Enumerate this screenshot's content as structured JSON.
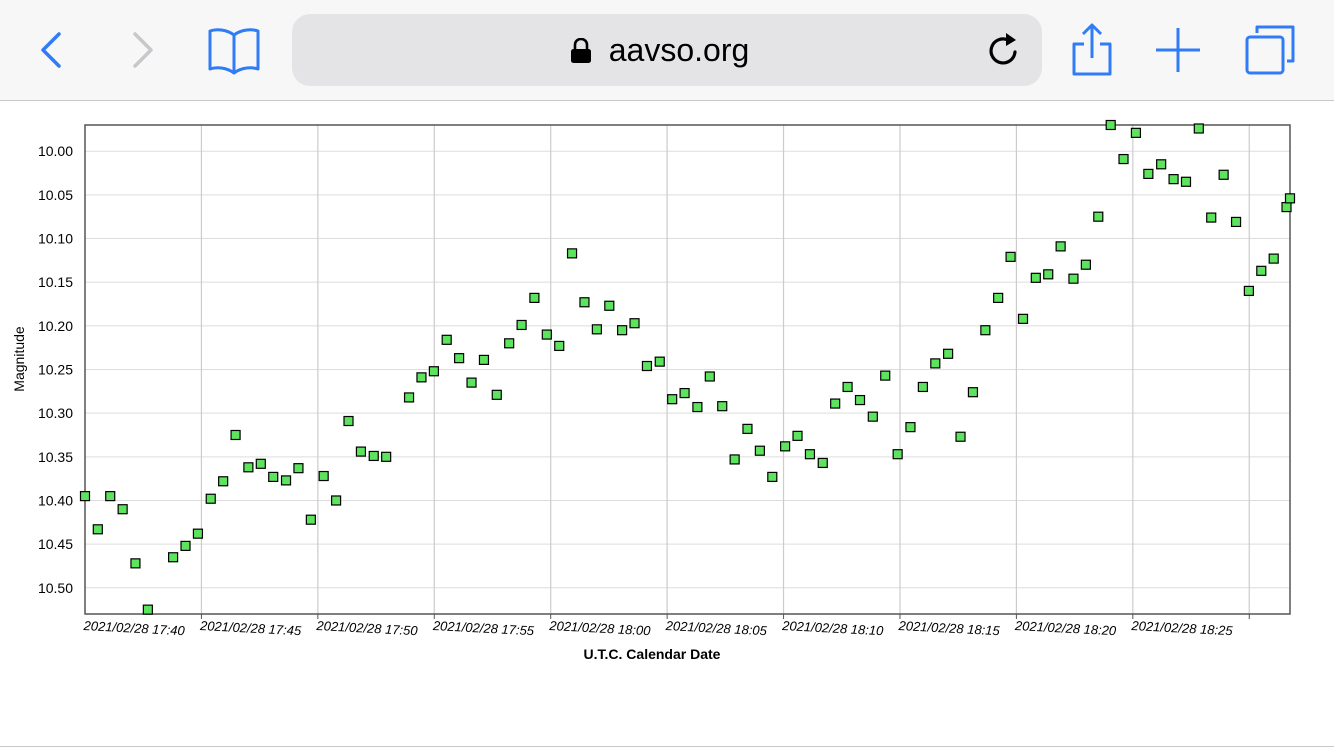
{
  "browser": {
    "url": "aavso.org",
    "icons": [
      "back-icon",
      "forward-icon",
      "bookmarks-icon",
      "lock-icon",
      "reload-icon",
      "share-icon",
      "new-tab-icon",
      "tabs-icon"
    ],
    "accent_color": "#2f7cf6",
    "disabled_color": "#c7c7cc"
  },
  "chart_data": {
    "type": "scatter",
    "title": "",
    "xlabel": "U.T.C. Calendar Date",
    "ylabel": "Magnitude",
    "y_inverted": true,
    "ylim": [
      10.53,
      9.97
    ],
    "xlim": [
      "2021/02/28 17:35:00",
      "2021/02/28 18:26:45"
    ],
    "grid": true,
    "marker": {
      "shape": "square",
      "fill": "#5ee35e",
      "stroke": "#000000"
    },
    "y_ticks": [
      "10.00",
      "10.05",
      "10.10",
      "10.15",
      "10.20",
      "10.25",
      "10.30",
      "10.35",
      "10.40",
      "10.45",
      "10.50"
    ],
    "x_ticks": [
      "2021/02/28 17:40",
      "2021/02/28 17:45",
      "2021/02/28 17:50",
      "2021/02/28 17:55",
      "2021/02/28 18:00",
      "2021/02/28 18:05",
      "2021/02/28 18:10",
      "2021/02/28 18:15",
      "2021/02/28 18:20",
      "2021/02/28 18:25"
    ],
    "points": [
      [
        "2021/02/28 17:35:00",
        10.395
      ],
      [
        "2021/02/28 17:35:33",
        10.433
      ],
      [
        "2021/02/28 17:36:05",
        10.395
      ],
      [
        "2021/02/28 17:36:37",
        10.41
      ],
      [
        "2021/02/28 17:37:10",
        10.472
      ],
      [
        "2021/02/28 17:37:42",
        10.525
      ],
      [
        "2021/02/28 17:38:47",
        10.465
      ],
      [
        "2021/02/28 17:39:19",
        10.452
      ],
      [
        "2021/02/28 17:39:51",
        10.438
      ],
      [
        "2021/02/28 17:40:24",
        10.398
      ],
      [
        "2021/02/28 17:40:56",
        10.378
      ],
      [
        "2021/02/28 17:41:28",
        10.325
      ],
      [
        "2021/02/28 17:42:01",
        10.362
      ],
      [
        "2021/02/28 17:42:33",
        10.358
      ],
      [
        "2021/02/28 17:43:05",
        10.373
      ],
      [
        "2021/02/28 17:43:38",
        10.377
      ],
      [
        "2021/02/28 17:44:10",
        10.363
      ],
      [
        "2021/02/28 17:44:42",
        10.422
      ],
      [
        "2021/02/28 17:45:15",
        10.372
      ],
      [
        "2021/02/28 17:45:47",
        10.4
      ],
      [
        "2021/02/28 17:46:19",
        10.309
      ],
      [
        "2021/02/28 17:46:51",
        10.344
      ],
      [
        "2021/02/28 17:47:24",
        10.349
      ],
      [
        "2021/02/28 17:47:56",
        10.35
      ],
      [
        "2021/02/28 17:48:55",
        10.282
      ],
      [
        "2021/02/28 17:49:27",
        10.259
      ],
      [
        "2021/02/28 17:49:59",
        10.252
      ],
      [
        "2021/02/28 17:50:32",
        10.216
      ],
      [
        "2021/02/28 17:51:04",
        10.237
      ],
      [
        "2021/02/28 17:51:36",
        10.265
      ],
      [
        "2021/02/28 17:52:08",
        10.239
      ],
      [
        "2021/02/28 17:52:41",
        10.279
      ],
      [
        "2021/02/28 17:53:13",
        10.22
      ],
      [
        "2021/02/28 17:53:45",
        10.199
      ],
      [
        "2021/02/28 17:54:18",
        10.168
      ],
      [
        "2021/02/28 17:54:50",
        10.21
      ],
      [
        "2021/02/28 17:55:22",
        10.223
      ],
      [
        "2021/02/28 17:55:55",
        10.117
      ],
      [
        "2021/02/28 17:56:27",
        10.173
      ],
      [
        "2021/02/28 17:56:59",
        10.204
      ],
      [
        "2021/02/28 17:57:31",
        10.177
      ],
      [
        "2021/02/28 17:58:04",
        10.205
      ],
      [
        "2021/02/28 17:58:36",
        10.197
      ],
      [
        "2021/02/28 17:59:08",
        10.246
      ],
      [
        "2021/02/28 17:59:41",
        10.241
      ],
      [
        "2021/02/28 18:00:13",
        10.284
      ],
      [
        "2021/02/28 18:00:45",
        10.277
      ],
      [
        "2021/02/28 18:01:18",
        10.293
      ],
      [
        "2021/02/28 18:01:50",
        10.258
      ],
      [
        "2021/02/28 18:02:22",
        10.292
      ],
      [
        "2021/02/28 18:02:54",
        10.353
      ],
      [
        "2021/02/28 18:03:27",
        10.318
      ],
      [
        "2021/02/28 18:03:59",
        10.343
      ],
      [
        "2021/02/28 18:04:31",
        10.373
      ],
      [
        "2021/02/28 18:05:04",
        10.338
      ],
      [
        "2021/02/28 18:05:36",
        10.326
      ],
      [
        "2021/02/28 18:06:08",
        10.347
      ],
      [
        "2021/02/28 18:06:41",
        10.357
      ],
      [
        "2021/02/28 18:07:13",
        10.289
      ],
      [
        "2021/02/28 18:07:45",
        10.27
      ],
      [
        "2021/02/28 18:08:17",
        10.285
      ],
      [
        "2021/02/28 18:08:50",
        10.304
      ],
      [
        "2021/02/28 18:09:22",
        10.257
      ],
      [
        "2021/02/28 18:09:54",
        10.347
      ],
      [
        "2021/02/28 18:10:27",
        10.316
      ],
      [
        "2021/02/28 18:10:59",
        10.27
      ],
      [
        "2021/02/28 18:11:31",
        10.243
      ],
      [
        "2021/02/28 18:12:04",
        10.232
      ],
      [
        "2021/02/28 18:12:36",
        10.327
      ],
      [
        "2021/02/28 18:13:08",
        10.276
      ],
      [
        "2021/02/28 18:13:40",
        10.205
      ],
      [
        "2021/02/28 18:14:13",
        10.168
      ],
      [
        "2021/02/28 18:14:45",
        10.121
      ],
      [
        "2021/02/28 18:15:17",
        10.192
      ],
      [
        "2021/02/28 18:15:50",
        10.145
      ],
      [
        "2021/02/28 18:16:22",
        10.141
      ],
      [
        "2021/02/28 18:16:54",
        10.109
      ],
      [
        "2021/02/28 18:17:27",
        10.146
      ],
      [
        "2021/02/28 18:17:59",
        10.13
      ],
      [
        "2021/02/28 18:18:31",
        10.075
      ],
      [
        "2021/02/28 18:19:03",
        9.97
      ],
      [
        "2021/02/28 18:19:36",
        10.009
      ],
      [
        "2021/02/28 18:20:08",
        9.979
      ],
      [
        "2021/02/28 18:20:40",
        10.026
      ],
      [
        "2021/02/28 18:21:13",
        10.015
      ],
      [
        "2021/02/28 18:21:45",
        10.032
      ],
      [
        "2021/02/28 18:22:17",
        10.035
      ],
      [
        "2021/02/28 18:22:50",
        9.974
      ],
      [
        "2021/02/28 18:23:22",
        10.076
      ],
      [
        "2021/02/28 18:23:54",
        10.027
      ],
      [
        "2021/02/28 18:24:26",
        10.081
      ],
      [
        "2021/02/28 18:24:59",
        10.16
      ],
      [
        "2021/02/28 18:25:31",
        10.137
      ],
      [
        "2021/02/28 18:26:03",
        10.123
      ],
      [
        "2021/02/28 18:26:36",
        10.064
      ],
      [
        "2021/02/28 18:26:45",
        10.054
      ]
    ]
  }
}
